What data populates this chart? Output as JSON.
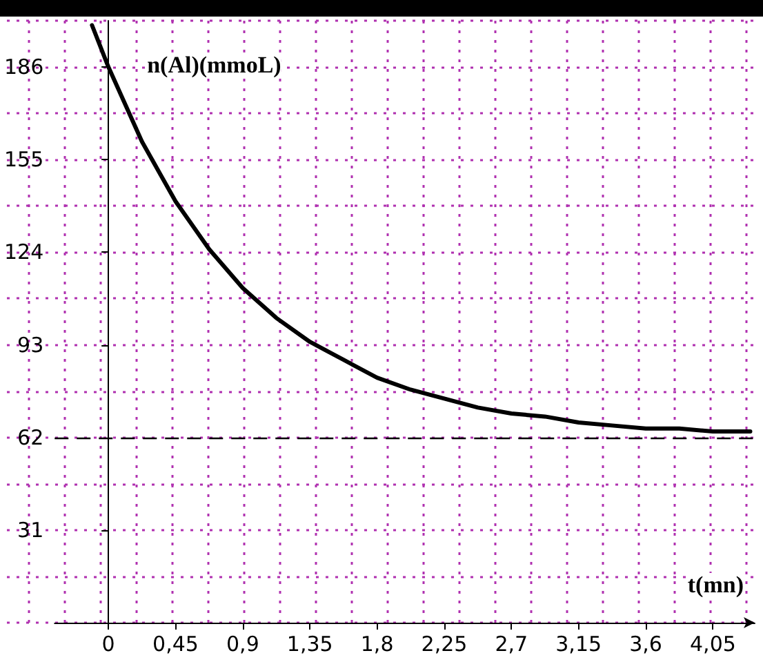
{
  "chart_data": {
    "type": "line",
    "xlabel": "t(mn)",
    "ylabel": "n(Al)(mmoL)",
    "xlim": [
      -0.36,
      4.33
    ],
    "ylim": [
      0,
      201.5
    ],
    "xticks": [
      0,
      {
        "value": 0.45,
        "label": "0,45"
      },
      {
        "value": 0.9,
        "label": "0,9"
      },
      {
        "value": 1.35,
        "label": "1,35"
      },
      {
        "value": 1.8,
        "label": "1,8"
      },
      {
        "value": 2.25,
        "label": "2,25"
      },
      {
        "value": 2.7,
        "label": "2,7"
      },
      {
        "value": 3.15,
        "label": "3,15"
      },
      {
        "value": 3.6,
        "label": "3,6"
      },
      {
        "value": 4.05,
        "label": "4,05"
      }
    ],
    "yticks": [
      31,
      62,
      93,
      124,
      155,
      186
    ],
    "grid": true,
    "marker": "none",
    "line_style": "solid",
    "ref_lines": [
      {
        "axis": "y",
        "value": 62,
        "color": "#000000",
        "line_style": "dashed"
      }
    ],
    "series": [
      {
        "color": "#000000",
        "x": [
          -0.11,
          0,
          0.225,
          0.45,
          0.675,
          0.9,
          1.125,
          1.35,
          1.575,
          1.8,
          2.025,
          2.25,
          2.475,
          2.7,
          2.925,
          3.15,
          3.375,
          3.6,
          3.825,
          4.05,
          4.3
        ],
        "values": [
          200,
          186,
          161,
          141,
          125,
          112,
          102,
          94,
          88,
          82,
          78,
          75,
          72,
          70,
          69,
          67,
          66,
          65,
          65,
          64,
          64
        ]
      }
    ]
  }
}
